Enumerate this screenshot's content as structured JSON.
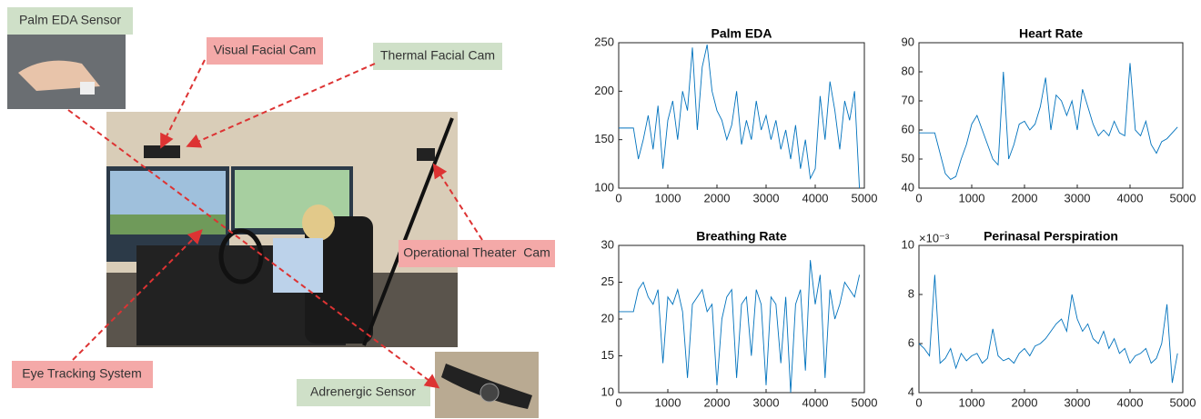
{
  "figure": {
    "labels": [
      "Palm EDA Sensor",
      "Visual Facial Cam",
      "Thermal Facial Cam",
      "Operational Theater  Cam",
      "Eye Tracking System",
      "Adrenergic Sensor"
    ]
  },
  "chart_data": [
    {
      "type": "line",
      "title": "Palm EDA",
      "color": "#0072bd",
      "x": [
        0,
        100,
        200,
        300,
        400,
        500,
        600,
        700,
        800,
        900,
        1000,
        1100,
        1200,
        1300,
        1400,
        1500,
        1600,
        1700,
        1800,
        1900,
        2000,
        2100,
        2200,
        2300,
        2400,
        2500,
        2600,
        2700,
        2800,
        2900,
        3000,
        3100,
        3200,
        3300,
        3400,
        3500,
        3600,
        3700,
        3800,
        3900,
        4000,
        4100,
        4200,
        4300,
        4400,
        4500,
        4600,
        4700,
        4800,
        4900
      ],
      "series": [
        {
          "name": "Palm EDA",
          "color": "#0072bd",
          "values": [
            162,
            162,
            162,
            162,
            130,
            150,
            175,
            140,
            185,
            120,
            170,
            190,
            150,
            200,
            180,
            245,
            160,
            225,
            248,
            200,
            180,
            170,
            150,
            165,
            200,
            145,
            170,
            150,
            190,
            160,
            175,
            150,
            170,
            140,
            160,
            130,
            165,
            120,
            150,
            110,
            120,
            195,
            150,
            210,
            180,
            140,
            190,
            170,
            200,
            100
          ]
        }
      ],
      "xlim": [
        0,
        5000
      ],
      "xticks": [
        0,
        1000,
        2000,
        3000,
        4000,
        5000
      ],
      "ylim": [
        100,
        250
      ],
      "yticks": [
        100,
        150,
        200,
        250
      ]
    },
    {
      "type": "line",
      "title": "Heart Rate",
      "color": "#0072bd",
      "x": [
        0,
        100,
        200,
        300,
        400,
        500,
        600,
        700,
        800,
        900,
        1000,
        1100,
        1200,
        1300,
        1400,
        1500,
        1600,
        1700,
        1800,
        1900,
        2000,
        2100,
        2200,
        2300,
        2400,
        2500,
        2600,
        2700,
        2800,
        2900,
        3000,
        3100,
        3200,
        3300,
        3400,
        3500,
        3600,
        3700,
        3800,
        3900,
        4000,
        4100,
        4200,
        4300,
        4400,
        4500,
        4600,
        4700,
        4800,
        4900
      ],
      "series": [
        {
          "name": "Heart Rate",
          "color": "#0072bd",
          "values": [
            59,
            59,
            59,
            59,
            52,
            45,
            43,
            44,
            50,
            55,
            62,
            65,
            60,
            55,
            50,
            48,
            80,
            50,
            55,
            62,
            63,
            60,
            62,
            68,
            78,
            60,
            72,
            70,
            65,
            70,
            60,
            74,
            68,
            62,
            58,
            60,
            58,
            63,
            59,
            58,
            83,
            60,
            58,
            63,
            55,
            52,
            56,
            57,
            59,
            61
          ]
        }
      ],
      "xlim": [
        0,
        5000
      ],
      "xticks": [
        0,
        1000,
        2000,
        3000,
        4000,
        5000
      ],
      "ylim": [
        40,
        90
      ],
      "yticks": [
        40,
        50,
        60,
        70,
        80,
        90
      ]
    },
    {
      "type": "line",
      "title": "Breathing Rate",
      "color": "#0072bd",
      "x": [
        0,
        100,
        200,
        300,
        400,
        500,
        600,
        700,
        800,
        900,
        1000,
        1100,
        1200,
        1300,
        1400,
        1500,
        1600,
        1700,
        1800,
        1900,
        2000,
        2100,
        2200,
        2300,
        2400,
        2500,
        2600,
        2700,
        2800,
        2900,
        3000,
        3100,
        3200,
        3300,
        3400,
        3500,
        3600,
        3700,
        3800,
        3900,
        4000,
        4100,
        4200,
        4300,
        4400,
        4500,
        4600,
        4700,
        4800,
        4900
      ],
      "series": [
        {
          "name": "Breathing Rate",
          "color": "#0072bd",
          "values": [
            21,
            21,
            21,
            21,
            24,
            25,
            23,
            22,
            24,
            14,
            23,
            22,
            24,
            21,
            12,
            22,
            23,
            24,
            21,
            22,
            11,
            20,
            23,
            24,
            12,
            22,
            23,
            15,
            24,
            22,
            11,
            23,
            22,
            14,
            23,
            10,
            22,
            24,
            13,
            28,
            22,
            26,
            12,
            24,
            20,
            22,
            25,
            24,
            23,
            26
          ]
        }
      ],
      "xlim": [
        0,
        5000
      ],
      "xticks": [
        0,
        1000,
        2000,
        3000,
        4000,
        5000
      ],
      "ylim": [
        10,
        30
      ],
      "yticks": [
        10,
        15,
        20,
        25,
        30
      ]
    },
    {
      "type": "line",
      "title": "Perinasal Perspiration",
      "color": "#0072bd",
      "y_multiplier_label": "×10⁻³",
      "x": [
        0,
        100,
        200,
        300,
        400,
        500,
        600,
        700,
        800,
        900,
        1000,
        1100,
        1200,
        1300,
        1400,
        1500,
        1600,
        1700,
        1800,
        1900,
        2000,
        2100,
        2200,
        2300,
        2400,
        2500,
        2600,
        2700,
        2800,
        2900,
        3000,
        3100,
        3200,
        3300,
        3400,
        3500,
        3600,
        3700,
        3800,
        3900,
        4000,
        4100,
        4200,
        4300,
        4400,
        4500,
        4600,
        4700,
        4800,
        4900
      ],
      "series": [
        {
          "name": "Perinasal Perspiration",
          "color": "#0072bd",
          "values": [
            6,
            5.8,
            5.5,
            8.8,
            5.2,
            5.4,
            5.8,
            5,
            5.6,
            5.3,
            5.5,
            5.6,
            5.2,
            5.4,
            6.6,
            5.5,
            5.3,
            5.4,
            5.2,
            5.6,
            5.8,
            5.5,
            5.9,
            6,
            6.2,
            6.5,
            6.8,
            7,
            6.5,
            8,
            7,
            6.5,
            6.8,
            6.2,
            6,
            6.5,
            5.8,
            6.2,
            5.6,
            5.8,
            5.2,
            5.5,
            5.6,
            5.8,
            5.2,
            5.4,
            6,
            7.6,
            4.4,
            5.6
          ]
        }
      ],
      "xlim": [
        0,
        5000
      ],
      "xticks": [
        0,
        1000,
        2000,
        3000,
        4000,
        5000
      ],
      "ylim": [
        4,
        10
      ],
      "yticks": [
        4,
        6,
        8,
        10
      ]
    }
  ]
}
